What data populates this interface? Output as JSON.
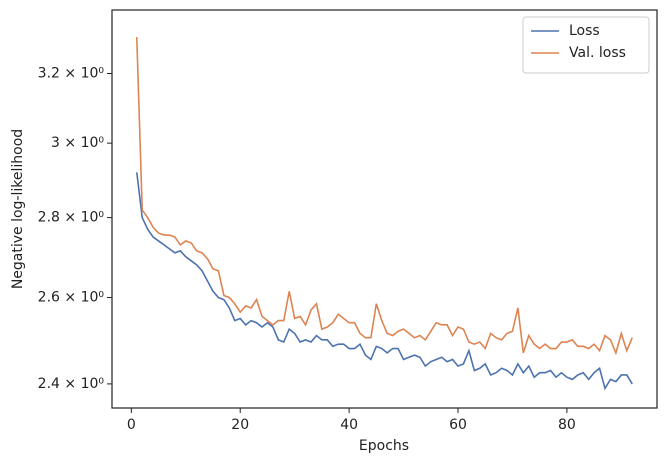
{
  "chart_data": {
    "type": "line",
    "xlabel": "Epochs",
    "ylabel": "Negative log-likelihood",
    "x": [
      1,
      2,
      3,
      4,
      5,
      6,
      7,
      8,
      9,
      10,
      11,
      12,
      13,
      14,
      15,
      16,
      17,
      18,
      19,
      20,
      21,
      22,
      23,
      24,
      25,
      26,
      27,
      28,
      29,
      30,
      31,
      32,
      33,
      34,
      35,
      36,
      37,
      38,
      39,
      40,
      41,
      42,
      43,
      44,
      45,
      46,
      47,
      48,
      49,
      50,
      51,
      52,
      53,
      54,
      55,
      56,
      57,
      58,
      59,
      60,
      61,
      62,
      63,
      64,
      65,
      66,
      67,
      68,
      69,
      70,
      71,
      72,
      73,
      74,
      75,
      76,
      77,
      78,
      79,
      80,
      81,
      82,
      83,
      84,
      85,
      86,
      87,
      88,
      89,
      90,
      91,
      92
    ],
    "series": [
      {
        "name": "Loss",
        "color": "#4c72b0",
        "values": [
          2.92,
          2.8,
          2.77,
          2.75,
          2.74,
          2.73,
          2.72,
          2.71,
          2.715,
          2.7,
          2.69,
          2.68,
          2.665,
          2.64,
          2.615,
          2.6,
          2.595,
          2.575,
          2.545,
          2.55,
          2.535,
          2.545,
          2.54,
          2.53,
          2.54,
          2.53,
          2.5,
          2.495,
          2.525,
          2.515,
          2.495,
          2.5,
          2.495,
          2.51,
          2.5,
          2.5,
          2.485,
          2.49,
          2.49,
          2.48,
          2.48,
          2.49,
          2.465,
          2.455,
          2.485,
          2.48,
          2.47,
          2.48,
          2.48,
          2.455,
          2.46,
          2.465,
          2.46,
          2.44,
          2.45,
          2.455,
          2.46,
          2.45,
          2.455,
          2.44,
          2.445,
          2.475,
          2.43,
          2.435,
          2.445,
          2.42,
          2.425,
          2.435,
          2.43,
          2.42,
          2.445,
          2.425,
          2.44,
          2.415,
          2.425,
          2.425,
          2.43,
          2.415,
          2.425,
          2.415,
          2.41,
          2.42,
          2.425,
          2.41,
          2.425,
          2.435,
          2.39,
          2.41,
          2.405,
          2.42,
          2.42,
          2.4
        ]
      },
      {
        "name": "Val. loss",
        "color": "#dd8452",
        "values": [
          3.31,
          2.82,
          2.8,
          2.775,
          2.76,
          2.755,
          2.755,
          2.75,
          2.73,
          2.74,
          2.735,
          2.715,
          2.71,
          2.695,
          2.67,
          2.665,
          2.605,
          2.6,
          2.585,
          2.565,
          2.58,
          2.575,
          2.595,
          2.555,
          2.545,
          2.535,
          2.545,
          2.545,
          2.615,
          2.55,
          2.555,
          2.535,
          2.57,
          2.585,
          2.525,
          2.53,
          2.54,
          2.56,
          2.55,
          2.54,
          2.54,
          2.515,
          2.505,
          2.505,
          2.585,
          2.545,
          2.515,
          2.51,
          2.52,
          2.525,
          2.515,
          2.505,
          2.51,
          2.5,
          2.52,
          2.54,
          2.535,
          2.535,
          2.51,
          2.53,
          2.525,
          2.495,
          2.49,
          2.495,
          2.48,
          2.515,
          2.505,
          2.5,
          2.515,
          2.52,
          2.575,
          2.47,
          2.51,
          2.49,
          2.48,
          2.49,
          2.48,
          2.48,
          2.495,
          2.495,
          2.5,
          2.485,
          2.485,
          2.48,
          2.49,
          2.475,
          2.51,
          2.5,
          2.47,
          2.515,
          2.475,
          2.505
        ]
      }
    ],
    "xlim": [
      -3.55,
      96.55
    ],
    "xticks": [
      0,
      20,
      40,
      60,
      80
    ],
    "ylim": [
      2.347,
      3.394
    ],
    "yscale": "log",
    "yticks": [
      {
        "value": 2.4,
        "label": "2.4 × 10⁰"
      },
      {
        "value": 2.6,
        "label": "2.6 × 10⁰"
      },
      {
        "value": 2.8,
        "label": "2.8 × 10⁰"
      },
      {
        "value": 3.0,
        "label": "3 × 10⁰"
      },
      {
        "value": 3.2,
        "label": "3.2 × 10⁰"
      }
    ],
    "legend": "upper right",
    "grid": false
  }
}
